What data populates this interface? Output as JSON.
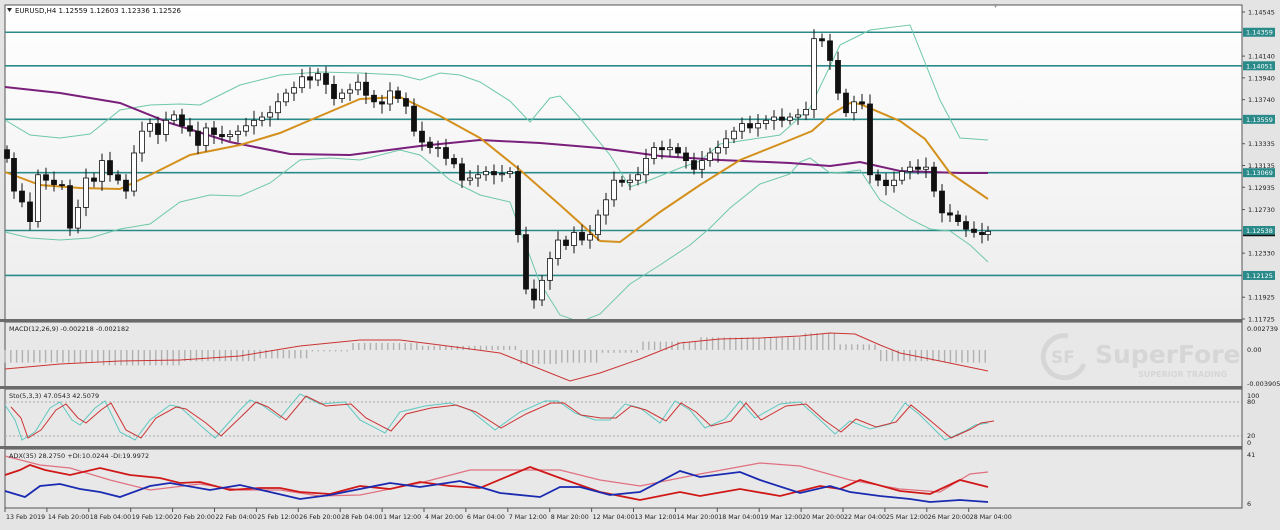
{
  "header": {
    "symbol_line": "EURUSD,H4  1.12559 1.12603 1.12336 1.12526",
    "symbol": "EURUSD",
    "timeframe": "H4",
    "open": "1.12559",
    "high": "1.12603",
    "low": "1.12336",
    "close": "1.12526"
  },
  "price_axis": {
    "ticks": [
      "1.14545",
      "1.14140",
      "1.13940",
      "1.13740",
      "1.13335",
      "1.13135",
      "1.12935",
      "1.12730",
      "1.12330",
      "1.11925",
      "1.11725"
    ],
    "level_labels": [
      "1.14359",
      "1.14051",
      "1.13559",
      "1.13069",
      "1.12538",
      "1.12125"
    ],
    "current_price": "1.12538"
  },
  "indicators": {
    "macd": {
      "label": "MACD(12,26,9) -0.002218 -0.002182",
      "axis": [
        "0.002739",
        "0.00",
        "-0.003905"
      ]
    },
    "stoch": {
      "label": "Sto(5,3,3) 47.0543 42.5079",
      "axis": [
        "100",
        "80",
        "20",
        "0"
      ]
    },
    "adx": {
      "label": "ADX(35) 28.2750 +DI:10.0244 -DI:19.9972",
      "axis": [
        "41",
        "6"
      ]
    }
  },
  "time_axis": [
    "13 Feb 2019",
    "14 Feb 20:00",
    "18 Feb 04:00",
    "19 Feb 12:00",
    "20 Feb 20:00",
    "22 Feb 04:00",
    "25 Feb 12:00",
    "26 Feb 20:00",
    "28 Feb 04:00",
    "1 Mar 12:00",
    "4 Mar 20:00",
    "6 Mar 04:00",
    "7 Mar 12:00",
    "8 Mar 20:00",
    "12 Mar 04:00",
    "13 Mar 12:00",
    "14 Mar 20:00",
    "18 Mar 04:00",
    "19 Mar 12:00",
    "20 Mar 20:00",
    "22 Mar 04:00",
    "25 Mar 12:00",
    "26 Mar 20:00",
    "28 Mar 04:00"
  ],
  "watermark": {
    "brand": "SuperForex",
    "tagline": "SUPERIOR TRADING",
    "logo_text": "SF"
  },
  "colors": {
    "level_line": "#2a8a8a",
    "level_label_bg": "#2a8a8a",
    "ma_fast": "#d4901c",
    "ma_slow": "#7a1f7a",
    "bollinger": "#6ec8a8",
    "macd_signal": "#cc3333",
    "macd_hist": "#b0b0b0",
    "stoch_main": "#5fc8c0",
    "stoch_signal": "#cc3333",
    "adx_main": "#e07080",
    "di_plus": "#1a2ab0",
    "di_minus": "#d01818"
  },
  "chart_data": {
    "type": "candlestick",
    "title": "EURUSD,H4",
    "xlabel": "",
    "ylabel": "",
    "ylim": [
      1.11725,
      1.14545
    ],
    "horizontal_levels": [
      1.14359,
      1.14051,
      1.13559,
      1.13069,
      1.12538,
      1.12125
    ],
    "x_ticks": [
      "13 Feb 2019",
      "14 Feb 20:00",
      "18 Feb 04:00",
      "19 Feb 12:00",
      "20 Feb 20:00",
      "22 Feb 04:00",
      "25 Feb 12:00",
      "26 Feb 20:00",
      "28 Feb 04:00",
      "1 Mar 12:00",
      "4 Mar 20:00",
      "6 Mar 04:00",
      "7 Mar 12:00",
      "8 Mar 20:00",
      "12 Mar 04:00",
      "13 Mar 12:00",
      "14 Mar 20:00",
      "18 Mar 04:00",
      "19 Mar 12:00",
      "20 Mar 20:00",
      "22 Mar 04:00",
      "25 Mar 12:00",
      "26 Mar 20:00",
      "28 Mar 04:00"
    ],
    "last_candle": {
      "open": 1.12559,
      "high": 1.12603,
      "low": 1.12336,
      "close": 1.12526
    },
    "price_path_approx": [
      {
        "t": "13 Feb 2019",
        "close": 1.13
      },
      {
        "t": "14 Feb 20:00",
        "close": 1.1275
      },
      {
        "t": "18 Feb 04:00",
        "close": 1.131
      },
      {
        "t": "19 Feb 12:00",
        "close": 1.134
      },
      {
        "t": "20 Feb 20:00",
        "close": 1.1345
      },
      {
        "t": "22 Feb 04:00",
        "close": 1.1335
      },
      {
        "t": "25 Feb 12:00",
        "close": 1.136
      },
      {
        "t": "26 Feb 20:00",
        "close": 1.138
      },
      {
        "t": "28 Feb 04:00",
        "close": 1.1375
      },
      {
        "t": "1 Mar 12:00",
        "close": 1.1375
      },
      {
        "t": "4 Mar 20:00",
        "close": 1.132
      },
      {
        "t": "6 Mar 04:00",
        "close": 1.1305
      },
      {
        "t": "7 Mar 12:00",
        "close": 1.1195
      },
      {
        "t": "8 Mar 20:00",
        "close": 1.1235
      },
      {
        "t": "12 Mar 04:00",
        "close": 1.1275
      },
      {
        "t": "13 Mar 12:00",
        "close": 1.1325
      },
      {
        "t": "14 Mar 20:00",
        "close": 1.131
      },
      {
        "t": "18 Mar 04:00",
        "close": 1.134
      },
      {
        "t": "19 Mar 12:00",
        "close": 1.1355
      },
      {
        "t": "20 Mar 20:00",
        "close": 1.143
      },
      {
        "t": "22 Mar 04:00",
        "close": 1.1305
      },
      {
        "t": "25 Mar 12:00",
        "close": 1.131
      },
      {
        "t": "26 Mar 20:00",
        "close": 1.1255
      },
      {
        "t": "28 Mar 04:00",
        "close": 1.1253
      }
    ],
    "indicators": {
      "macd": {
        "params": "12,26,9",
        "main": -0.002218,
        "signal": -0.002182,
        "range": [
          -0.003905,
          0.002739
        ]
      },
      "stochastic": {
        "params": "5,3,3",
        "k": 47.0543,
        "d": 42.5079,
        "levels": [
          20,
          80
        ]
      },
      "adx": {
        "period": 35,
        "adx": 28.275,
        "plus_di": 10.0244,
        "minus_di": 19.9972,
        "range": [
          6,
          41
        ]
      }
    }
  }
}
